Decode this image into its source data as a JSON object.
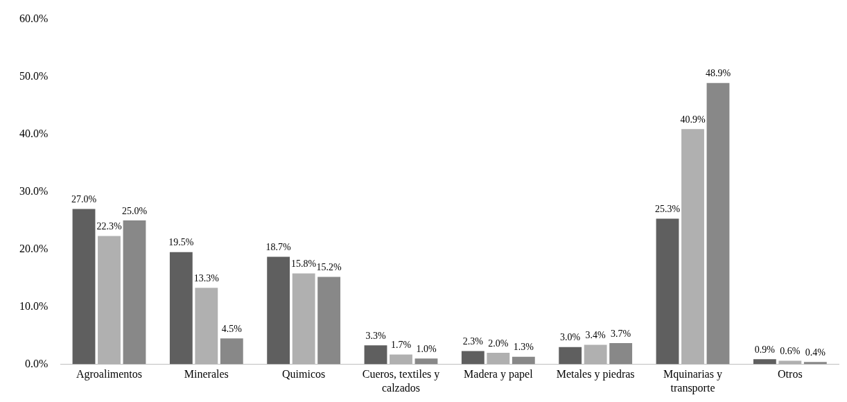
{
  "chart_data": {
    "type": "bar",
    "categories": [
      "Agroalimentos",
      "Minerales",
      "Quimicos",
      "Cueros, textiles y calzados",
      "Madera y papel",
      "Metales y piedras",
      "Mquinarias y transporte",
      "Otros"
    ],
    "series": [
      {
        "color": "#5f5f5f",
        "values": [
          27.0,
          19.5,
          18.7,
          3.3,
          2.3,
          3.0,
          25.3,
          0.9
        ],
        "value_labels": [
          "27.0%",
          "19.5%",
          "18.7%",
          "3.3%",
          "2.3%",
          "3.0%",
          "25.3%",
          "0.9%"
        ]
      },
      {
        "color": "#b0b0b0",
        "values": [
          22.3,
          13.3,
          15.8,
          1.7,
          2.0,
          3.4,
          40.9,
          0.6
        ],
        "value_labels": [
          "22.3%",
          "13.3%",
          "15.8%",
          "1.7%",
          "2.0%",
          "3.4%",
          "40.9%",
          "0.6%"
        ]
      },
      {
        "color": "#888888",
        "values": [
          25.0,
          4.5,
          15.2,
          1.0,
          1.3,
          3.7,
          48.9,
          0.4
        ],
        "value_labels": [
          "25.0%",
          "4.5%",
          "15.2%",
          "1.0%",
          "1.3%",
          "3.7%",
          "48.9%",
          "0.4%"
        ]
      }
    ],
    "ylim": [
      0,
      60
    ],
    "yticks": [
      {
        "value": 0,
        "label": "0.0%"
      },
      {
        "value": 10,
        "label": "10.0%"
      },
      {
        "value": 20,
        "label": "20.0%"
      },
      {
        "value": 30,
        "label": "30.0%"
      },
      {
        "value": 40,
        "label": "40.0%"
      },
      {
        "value": 50,
        "label": "50.0%"
      },
      {
        "value": 60,
        "label": "60.0%"
      }
    ],
    "grid": false,
    "legend": false
  }
}
